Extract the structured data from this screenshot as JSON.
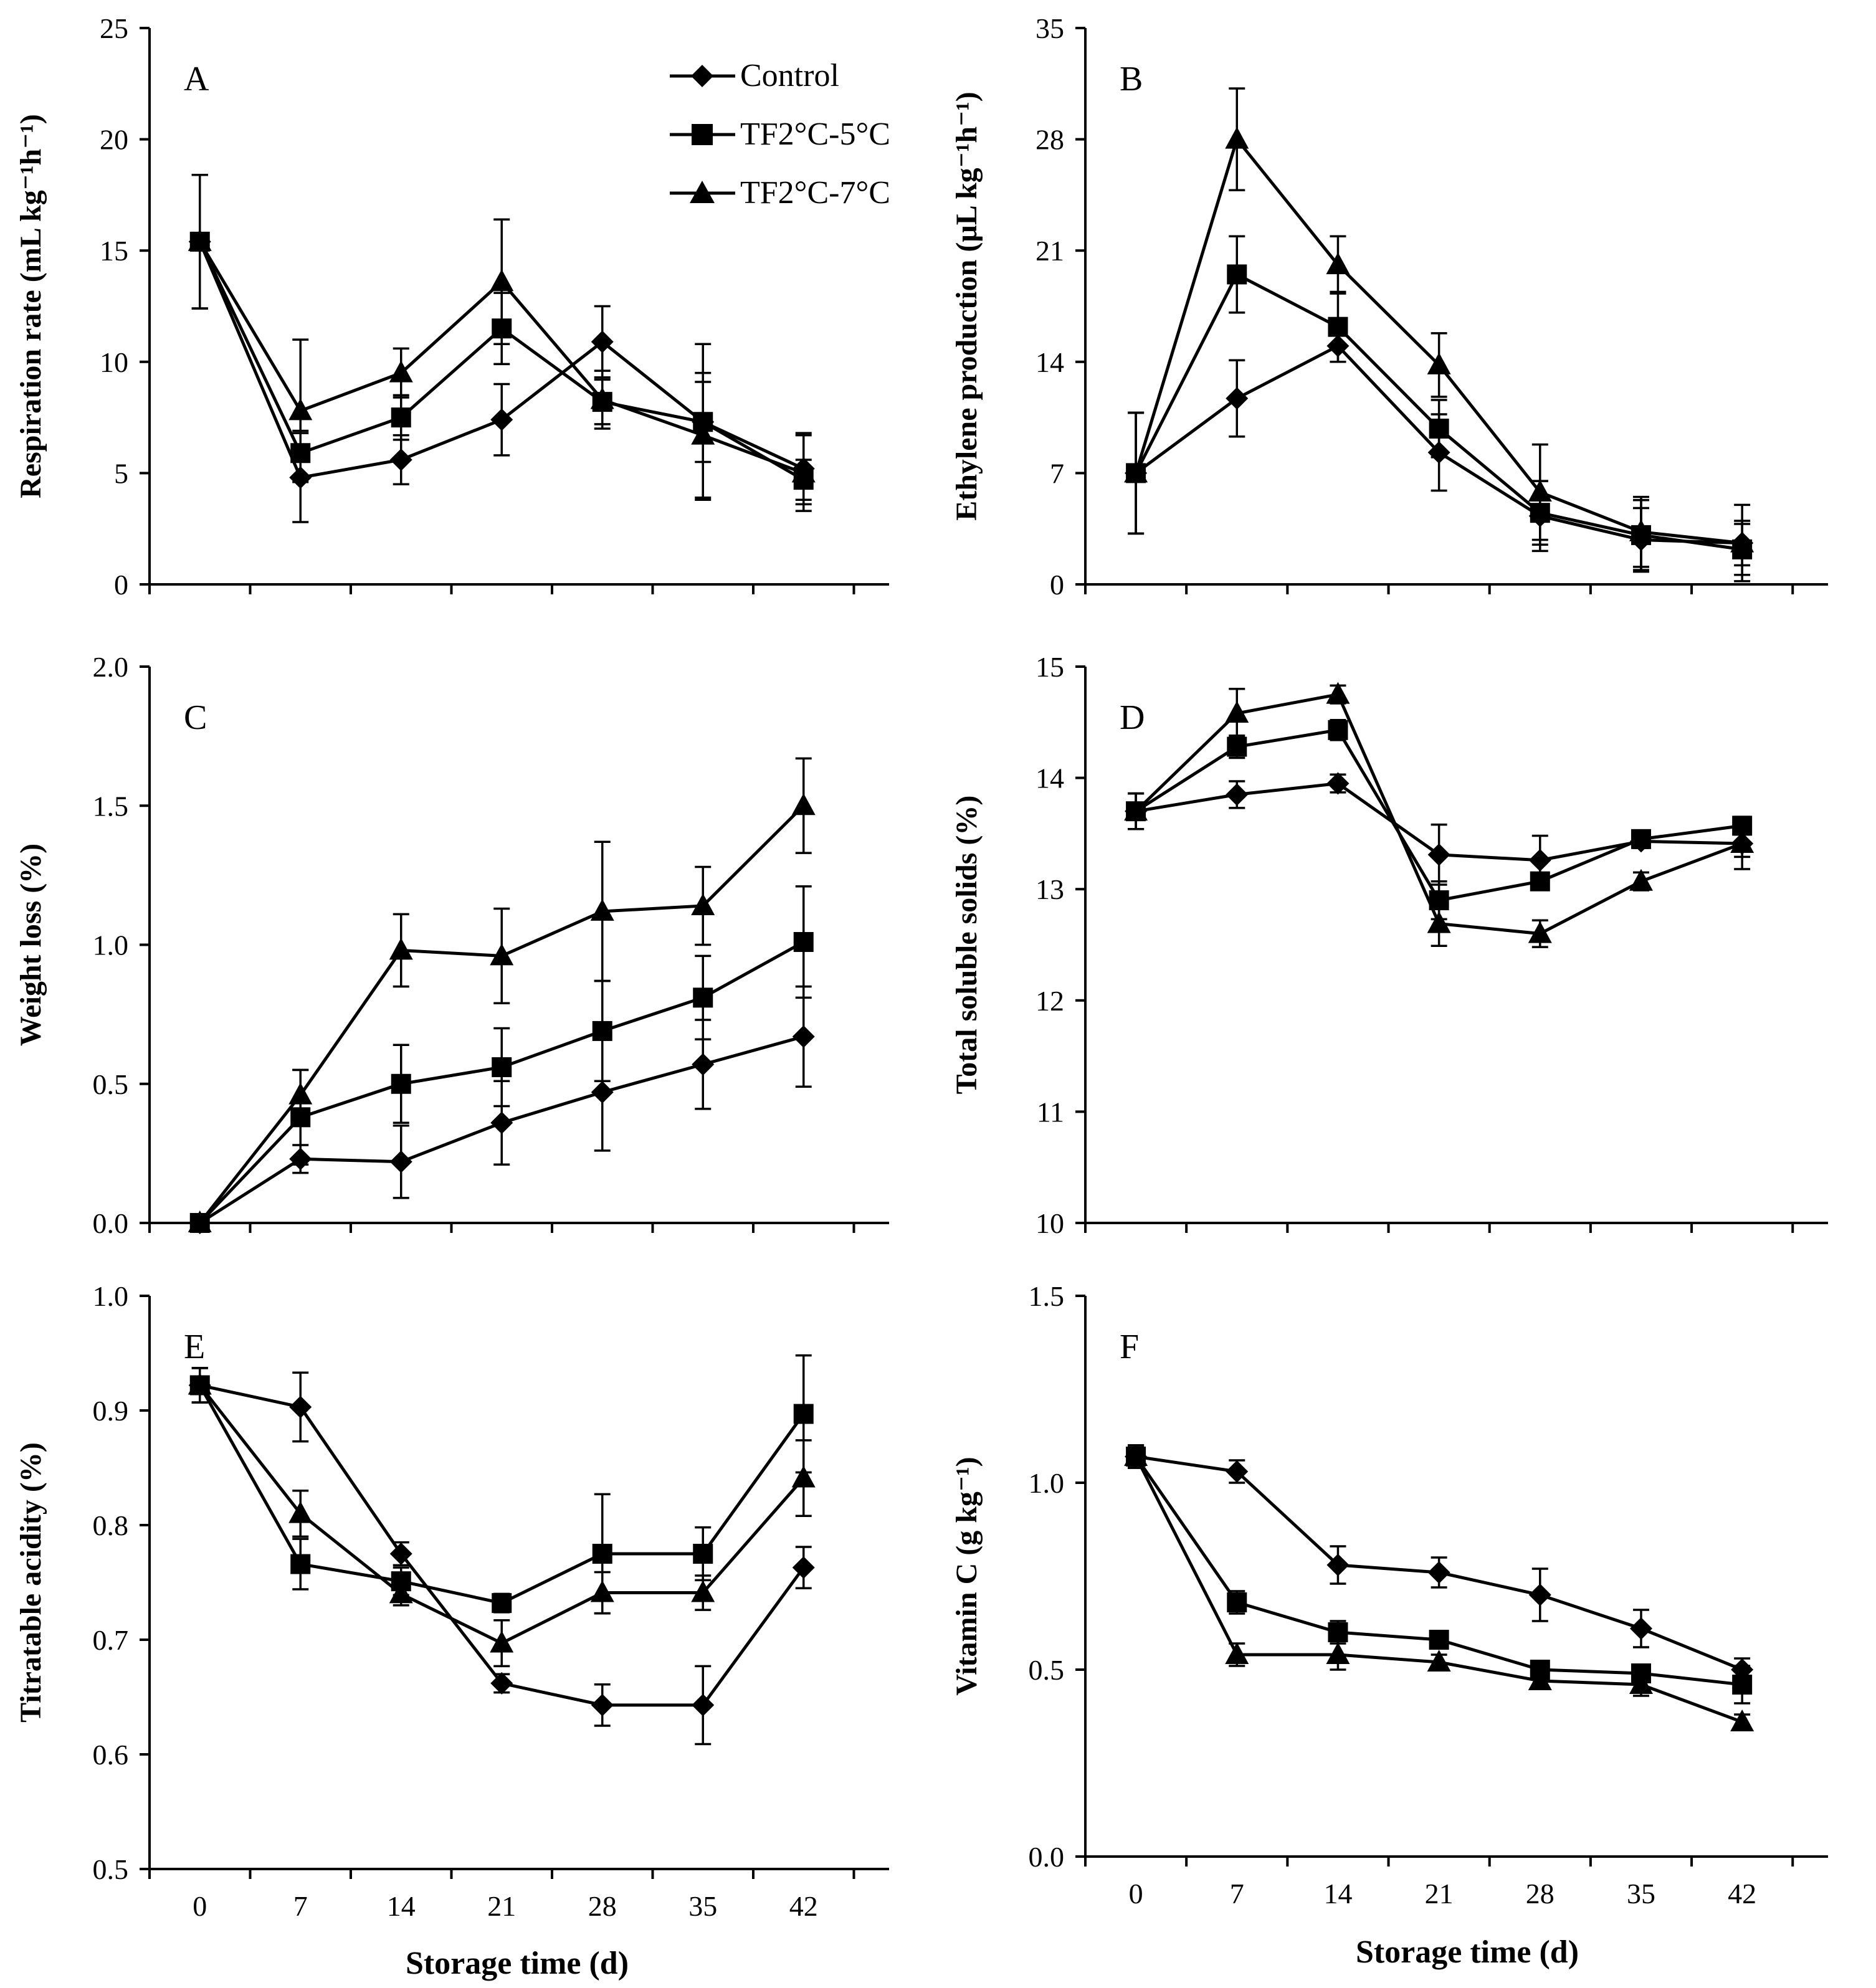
{
  "figure": {
    "xlabel": "Storage time (d)"
  },
  "legend": [
    {
      "name": "Control",
      "marker": "diamond-icon"
    },
    {
      "name": "TF2°C-5°C",
      "marker": "square-icon"
    },
    {
      "name": "TF2°C-7°C",
      "marker": "triangle-icon"
    }
  ],
  "chart_data": [
    {
      "type": "line",
      "panel": "A",
      "ylabel": "Respiration rate (mL kg⁻¹h⁻¹)",
      "ylim": [
        0,
        25
      ],
      "yticks": [
        0,
        5,
        10,
        15,
        20,
        25
      ],
      "ytick_labels": [
        "0",
        "5",
        "10",
        "15",
        "20",
        "25"
      ],
      "xlabel": "",
      "x": [
        0,
        7,
        14,
        21,
        28,
        35,
        42
      ],
      "series": [
        {
          "name": "Control",
          "values": [
            15.4,
            4.8,
            5.6,
            7.4,
            10.9,
            7.3,
            5.2
          ],
          "errors": [
            3.0,
            2.0,
            1.1,
            1.6,
            1.6,
            3.5,
            1.6
          ]
        },
        {
          "name": "TF2°C-5°C",
          "values": [
            15.4,
            5.9,
            7.5,
            11.5,
            8.2,
            7.3,
            4.7
          ],
          "errors": [
            3.0,
            1.0,
            1.0,
            1.6,
            1.0,
            1.8,
            0.9
          ]
        },
        {
          "name": "TF2°C-7°C",
          "values": [
            15.4,
            7.8,
            9.5,
            13.6,
            8.3,
            6.7,
            5.0
          ],
          "errors": [
            3.0,
            3.2,
            1.1,
            2.8,
            1.3,
            2.8,
            1.7
          ]
        }
      ]
    },
    {
      "type": "line",
      "panel": "B",
      "ylabel": "Ethylene production (μL kg⁻¹h⁻¹)",
      "ylim": [
        0,
        35
      ],
      "yticks": [
        0,
        7,
        14,
        21,
        28,
        35
      ],
      "ytick_labels": [
        "0",
        "7",
        "14",
        "21",
        "28",
        "35"
      ],
      "xlabel": "",
      "x": [
        0,
        7,
        14,
        21,
        28,
        35,
        42
      ],
      "series": [
        {
          "name": "Control",
          "values": [
            7.0,
            11.7,
            15.0,
            8.3,
            4.3,
            2.8,
            2.6
          ],
          "errors": [
            3.8,
            2.4,
            1.0,
            2.4,
            2.2,
            2.0,
            2.4
          ]
        },
        {
          "name": "TF2°C-5°C",
          "values": [
            7.0,
            19.5,
            16.2,
            9.8,
            4.5,
            3.1,
            2.2
          ],
          "errors": [
            3.8,
            2.4,
            2.2,
            1.8,
            2.0,
            2.2,
            1.6
          ]
        },
        {
          "name": "TF2°C-7°C",
          "values": [
            7.0,
            28.0,
            20.1,
            13.8,
            5.8,
            3.3,
            2.6
          ],
          "errors": [
            3.8,
            3.2,
            1.8,
            2.0,
            3.0,
            2.2,
            1.4
          ]
        }
      ]
    },
    {
      "type": "line",
      "panel": "C",
      "ylabel": "Weight loss (%)",
      "ylim": [
        0,
        2
      ],
      "yticks": [
        0,
        0.5,
        1.0,
        1.5,
        2.0
      ],
      "ytick_labels": [
        "0.0",
        "0.5",
        "1.0",
        "1.5",
        "2.0"
      ],
      "xlabel": "",
      "x": [
        0,
        7,
        14,
        21,
        28,
        35,
        42
      ],
      "series": [
        {
          "name": "Control",
          "values": [
            0.0,
            0.23,
            0.22,
            0.36,
            0.47,
            0.57,
            0.67
          ],
          "errors": [
            0.0,
            0.05,
            0.13,
            0.15,
            0.21,
            0.16,
            0.18
          ]
        },
        {
          "name": "TF2°C-5°C",
          "values": [
            0.0,
            0.38,
            0.5,
            0.56,
            0.69,
            0.81,
            1.01
          ],
          "errors": [
            0.0,
            0.17,
            0.14,
            0.14,
            0.18,
            0.15,
            0.2
          ]
        },
        {
          "name": "TF2°C-7°C",
          "values": [
            0.0,
            0.46,
            0.98,
            0.96,
            1.12,
            1.14,
            1.5
          ],
          "errors": [
            0.0,
            0.09,
            0.13,
            0.17,
            0.25,
            0.14,
            0.17
          ]
        }
      ]
    },
    {
      "type": "line",
      "panel": "D",
      "ylabel": "Total soluble solids (%)",
      "ylim": [
        10,
        15
      ],
      "yticks": [
        10,
        11,
        12,
        13,
        14,
        15
      ],
      "ytick_labels": [
        "10",
        "11",
        "12",
        "13",
        "14",
        "15"
      ],
      "xlabel": "",
      "x": [
        0,
        7,
        14,
        21,
        28,
        35,
        42
      ],
      "series": [
        {
          "name": "Control",
          "values": [
            13.7,
            13.85,
            13.95,
            13.31,
            13.26,
            13.43,
            13.41
          ],
          "errors": [
            0.16,
            0.12,
            0.08,
            0.27,
            0.22,
            0.06,
            0.12
          ]
        },
        {
          "name": "TF2°C-5°C",
          "values": [
            13.7,
            14.28,
            14.43,
            12.9,
            13.07,
            13.45,
            13.57
          ],
          "errors": [
            0.16,
            0.1,
            0.09,
            0.17,
            0.07,
            0.05,
            0.08
          ]
        },
        {
          "name": "TF2°C-7°C",
          "values": [
            13.7,
            14.58,
            14.75,
            12.69,
            12.6,
            13.07,
            13.41
          ],
          "errors": [
            0.16,
            0.22,
            0.08,
            0.2,
            0.12,
            0.08,
            0.23
          ]
        }
      ]
    },
    {
      "type": "line",
      "panel": "E",
      "ylabel": "Titratable acidity (%)",
      "ylim": [
        0.5,
        1.0
      ],
      "yticks": [
        0.5,
        0.6,
        0.7,
        0.8,
        0.9,
        1.0
      ],
      "ytick_labels": [
        "0.5",
        "0.6",
        "0.7",
        "0.8",
        "0.9",
        "1.0"
      ],
      "xlabel": "Storage time (d)",
      "x": [
        0,
        7,
        14,
        21,
        28,
        35,
        42
      ],
      "xtick_labels": [
        "0",
        "7",
        "14",
        "21",
        "28",
        "35",
        "42"
      ],
      "series": [
        {
          "name": "Control",
          "values": [
            0.922,
            0.903,
            0.775,
            0.662,
            0.643,
            0.643,
            0.763
          ],
          "errors": [
            0.015,
            0.03,
            0.01,
            0.008,
            0.018,
            0.034,
            0.018
          ]
        },
        {
          "name": "TF2°C-5°C",
          "values": [
            0.922,
            0.766,
            0.751,
            0.732,
            0.775,
            0.775,
            0.897
          ],
          "errors": [
            0.015,
            0.022,
            0.012,
            0.008,
            0.052,
            0.023,
            0.051
          ]
        },
        {
          "name": "TF2°C-7°C",
          "values": [
            0.922,
            0.81,
            0.74,
            0.697,
            0.741,
            0.741,
            0.841
          ],
          "errors": [
            0.015,
            0.02,
            0.01,
            0.02,
            0.018,
            0.015,
            0.033
          ]
        }
      ]
    },
    {
      "type": "line",
      "panel": "F",
      "ylabel": "Vitamin C (g kg⁻¹)",
      "ylim": [
        0,
        1.5
      ],
      "yticks": [
        0,
        0.5,
        1.0,
        1.5
      ],
      "ytick_labels": [
        "0.0",
        "0.5",
        "1.0",
        "1.5"
      ],
      "xlabel": "Storage time (d)",
      "x": [
        0,
        7,
        14,
        21,
        28,
        35,
        42
      ],
      "xtick_labels": [
        "0",
        "7",
        "14",
        "21",
        "28",
        "35",
        "42"
      ],
      "series": [
        {
          "name": "Control",
          "values": [
            1.07,
            1.03,
            0.78,
            0.76,
            0.7,
            0.61,
            0.5
          ],
          "errors": [
            0.03,
            0.03,
            0.05,
            0.04,
            0.07,
            0.05,
            0.03
          ]
        },
        {
          "name": "TF2°C-5°C",
          "values": [
            1.07,
            0.68,
            0.6,
            0.58,
            0.5,
            0.49,
            0.46
          ],
          "errors": [
            0.03,
            0.03,
            0.03,
            0.02,
            0.02,
            0.02,
            0.05
          ]
        },
        {
          "name": "TF2°C-7°C",
          "values": [
            1.07,
            0.54,
            0.54,
            0.52,
            0.47,
            0.46,
            0.36
          ],
          "errors": [
            0.03,
            0.03,
            0.04,
            0.02,
            0.02,
            0.03,
            0.02
          ]
        }
      ]
    }
  ]
}
